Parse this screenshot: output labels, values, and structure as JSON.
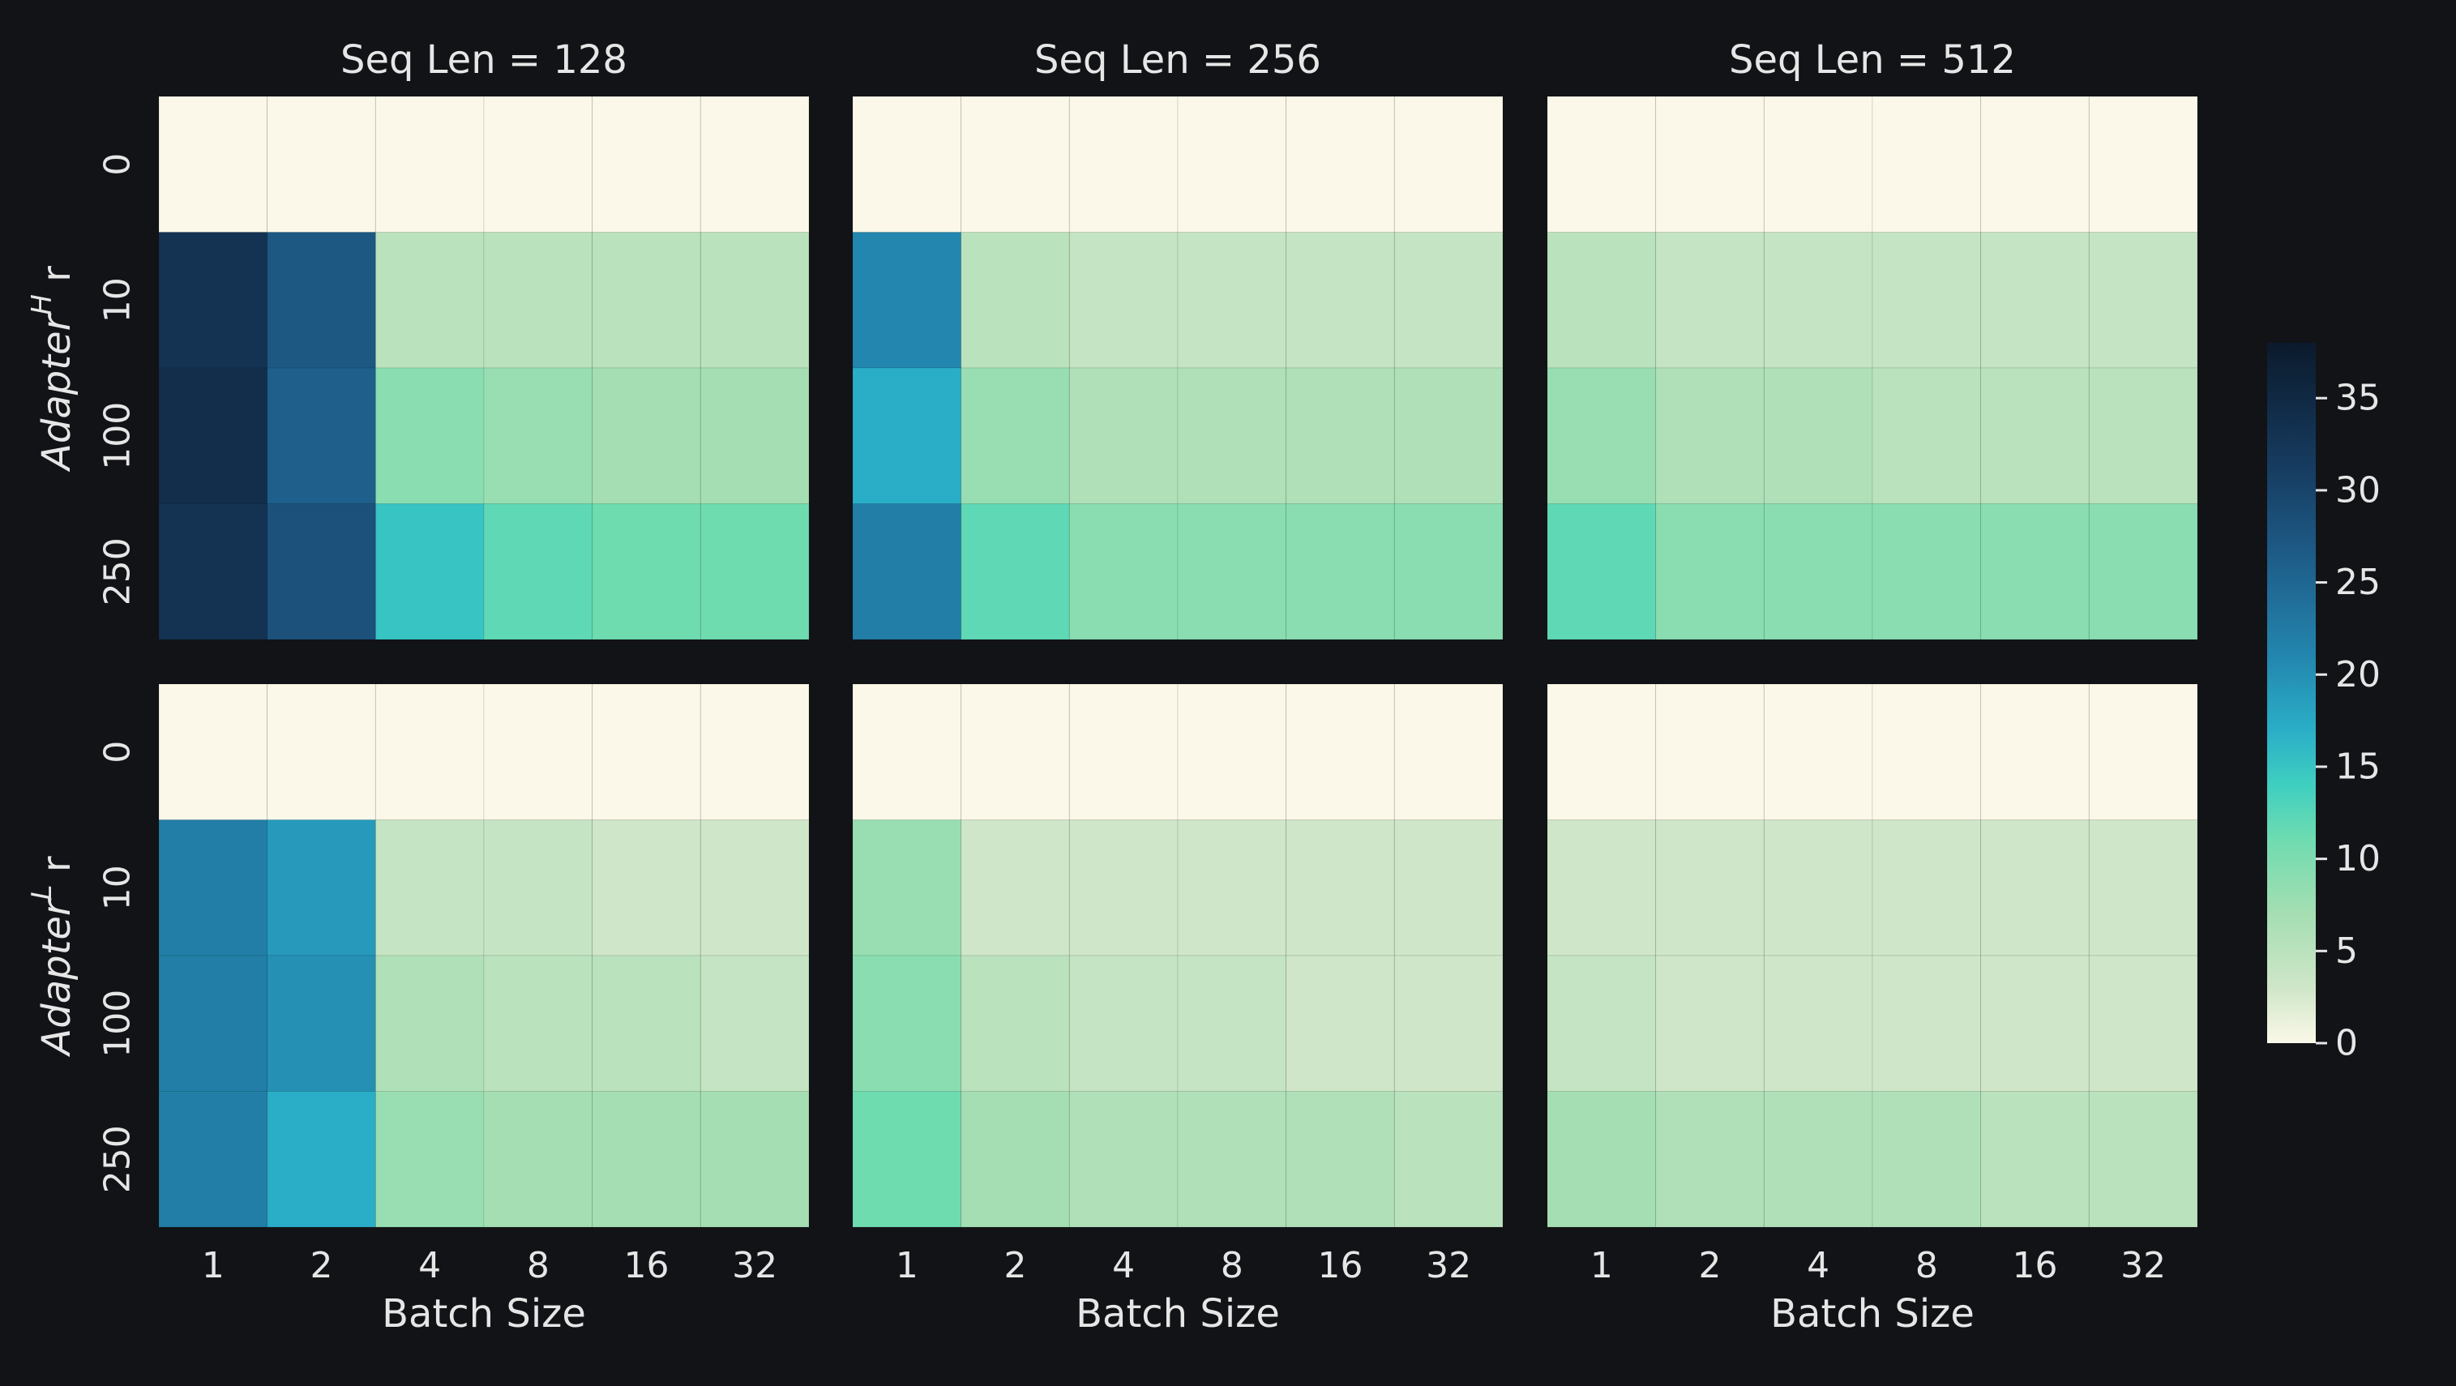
{
  "chart_data": {
    "type": "heatmap",
    "facets": {
      "columns": [
        "Seq Len = 128",
        "Seq Len = 256",
        "Seq Len = 512"
      ],
      "rows": [
        {
          "ylabel_main": "Adapter",
          "ylabel_sup": "H",
          "ylabel_suffix": " r"
        },
        {
          "ylabel_main": "Adapter",
          "ylabel_sup": "L",
          "ylabel_suffix": " r"
        }
      ]
    },
    "x_categories": [
      "1",
      "2",
      "4",
      "8",
      "16",
      "32"
    ],
    "y_categories": [
      "0",
      "10",
      "100",
      "250"
    ],
    "xlabel": "Batch Size",
    "colorbar": {
      "min": 0,
      "max": 38,
      "ticks": [
        0,
        5,
        10,
        15,
        20,
        25,
        30,
        35
      ],
      "colormap": [
        {
          "v": 0,
          "color": "#fbf8e9"
        },
        {
          "v": 3,
          "color": "#cfe6c8"
        },
        {
          "v": 7,
          "color": "#a5deb2"
        },
        {
          "v": 11,
          "color": "#6fdcb0"
        },
        {
          "v": 14,
          "color": "#3fcfc0"
        },
        {
          "v": 17,
          "color": "#2aaec7"
        },
        {
          "v": 21,
          "color": "#2386ae"
        },
        {
          "v": 26,
          "color": "#1e5f8b"
        },
        {
          "v": 31,
          "color": "#173d62"
        },
        {
          "v": 38,
          "color": "#0b1a2c"
        }
      ]
    },
    "panels": [
      {
        "row": 0,
        "col": 0,
        "values": [
          [
            0,
            0,
            0,
            0,
            0,
            0
          ],
          [
            33,
            27,
            5,
            5,
            5,
            5
          ],
          [
            34,
            26,
            9,
            8,
            7,
            7
          ],
          [
            33,
            28,
            15,
            12,
            11,
            11
          ]
        ]
      },
      {
        "row": 0,
        "col": 1,
        "values": [
          [
            0,
            0,
            0,
            0,
            0,
            0
          ],
          [
            21,
            5,
            4,
            4,
            4,
            4
          ],
          [
            17,
            8,
            6,
            6,
            6,
            6
          ],
          [
            22,
            12,
            9,
            9,
            9,
            9
          ]
        ]
      },
      {
        "row": 0,
        "col": 2,
        "values": [
          [
            0,
            0,
            0,
            0,
            0,
            0
          ],
          [
            5,
            4,
            4,
            4,
            4,
            4
          ],
          [
            8,
            6,
            6,
            5,
            5,
            5
          ],
          [
            12,
            9,
            9,
            9,
            9,
            9
          ]
        ]
      },
      {
        "row": 1,
        "col": 0,
        "values": [
          [
            0,
            0,
            0,
            0,
            0,
            0
          ],
          [
            22,
            19,
            4,
            4,
            3,
            3
          ],
          [
            22,
            20,
            6,
            5,
            5,
            4
          ],
          [
            22,
            17,
            8,
            7,
            7,
            7
          ]
        ]
      },
      {
        "row": 1,
        "col": 1,
        "values": [
          [
            0,
            0,
            0,
            0,
            0,
            0
          ],
          [
            8,
            3,
            3,
            3,
            3,
            3
          ],
          [
            9,
            5,
            4,
            4,
            3,
            3
          ],
          [
            11,
            7,
            6,
            6,
            6,
            5
          ]
        ]
      },
      {
        "row": 1,
        "col": 2,
        "values": [
          [
            0,
            0,
            0,
            0,
            0,
            0
          ],
          [
            3,
            3,
            3,
            3,
            3,
            3
          ],
          [
            4,
            3,
            3,
            3,
            3,
            3
          ],
          [
            7,
            6,
            6,
            6,
            5,
            5
          ]
        ]
      }
    ]
  }
}
